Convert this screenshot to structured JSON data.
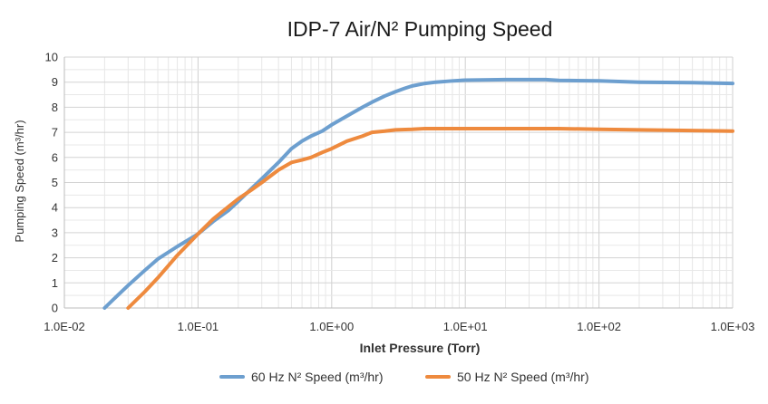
{
  "chart_data": {
    "type": "line",
    "title": "IDP-7 Air/N² Pumping Speed",
    "xlabel": "Inlet Pressure (Torr)",
    "ylabel": "Pumping Speed (m³/hr)",
    "x_scale": "log",
    "xlim": [
      0.01,
      1000
    ],
    "ylim": [
      0,
      10
    ],
    "grid": true,
    "legend_position": "bottom",
    "x_ticks": [
      {
        "value": 0.01,
        "label": "1.0E-02"
      },
      {
        "value": 0.1,
        "label": "1.0E-01"
      },
      {
        "value": 1,
        "label": "1.0E+00"
      },
      {
        "value": 10,
        "label": "1.0E+01"
      },
      {
        "value": 100,
        "label": "1.0E+02"
      },
      {
        "value": 1000,
        "label": "1.0E+03"
      }
    ],
    "y_ticks": [
      {
        "value": 0,
        "label": "0"
      },
      {
        "value": 1,
        "label": "1"
      },
      {
        "value": 2,
        "label": "2"
      },
      {
        "value": 3,
        "label": "3"
      },
      {
        "value": 4,
        "label": "4"
      },
      {
        "value": 5,
        "label": "5"
      },
      {
        "value": 6,
        "label": "6"
      },
      {
        "value": 7,
        "label": "7"
      },
      {
        "value": 8,
        "label": "8"
      },
      {
        "value": 9,
        "label": "9"
      },
      {
        "value": 10,
        "label": "10"
      }
    ],
    "series": [
      {
        "name": "60 Hz N² Speed (m³/hr)",
        "color": "#6d9fcf",
        "x": [
          0.02,
          0.025,
          0.03,
          0.04,
          0.05,
          0.07,
          0.1,
          0.13,
          0.17,
          0.2,
          0.25,
          0.3,
          0.4,
          0.5,
          0.6,
          0.7,
          0.85,
          1.0,
          1.3,
          1.7,
          2.0,
          2.5,
          3.0,
          3.5,
          4.0,
          5.0,
          6.0,
          8.0,
          10,
          20,
          40,
          50,
          100,
          200,
          500,
          1000
        ],
        "y": [
          0,
          0.5,
          0.9,
          1.5,
          1.95,
          2.45,
          2.95,
          3.45,
          3.9,
          4.25,
          4.75,
          5.15,
          5.8,
          6.35,
          6.65,
          6.85,
          7.05,
          7.3,
          7.65,
          8.0,
          8.2,
          8.45,
          8.62,
          8.75,
          8.85,
          8.95,
          9.0,
          9.05,
          9.08,
          9.1,
          9.1,
          9.07,
          9.05,
          9.0,
          8.98,
          8.95
        ]
      },
      {
        "name": "50 Hz N² Speed (m³/hr)",
        "color": "#ee8a3e",
        "x": [
          0.03,
          0.04,
          0.05,
          0.07,
          0.1,
          0.13,
          0.17,
          0.2,
          0.25,
          0.3,
          0.4,
          0.5,
          0.6,
          0.7,
          0.85,
          1.0,
          1.3,
          1.7,
          2.0,
          2.5,
          3.0,
          4.0,
          5.0,
          10,
          50,
          100,
          200,
          1000
        ],
        "y": [
          0,
          0.65,
          1.2,
          2.1,
          2.95,
          3.55,
          4.05,
          4.35,
          4.7,
          5.0,
          5.5,
          5.8,
          5.9,
          6.0,
          6.2,
          6.35,
          6.65,
          6.85,
          7.0,
          7.05,
          7.1,
          7.12,
          7.15,
          7.15,
          7.15,
          7.12,
          7.1,
          7.05
        ]
      }
    ]
  }
}
